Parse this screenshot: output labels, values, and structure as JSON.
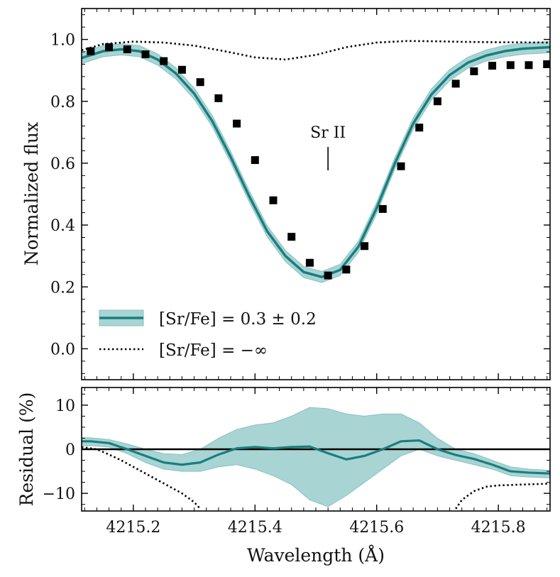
{
  "chart_data": [
    {
      "panel": "top",
      "type": "line",
      "title": "",
      "xlabel": "",
      "ylabel": "Normalized flux",
      "xlim": [
        4215.115,
        4215.885
      ],
      "ylim": [
        -0.1,
        1.1
      ],
      "yticks": [
        0.0,
        0.2,
        0.4,
        0.6,
        0.8,
        1.0
      ],
      "ytick_labels": [
        "0.0",
        "0.2",
        "0.4",
        "0.6",
        "0.8",
        "1.0"
      ],
      "annotation": {
        "text": "Sr II",
        "x": 4215.52
      },
      "series": [
        {
          "name": "[Sr/Fe] = 0.3 ± 0.2",
          "style": "solid-with-band",
          "x": [
            4215.115,
            4215.15,
            4215.18,
            4215.21,
            4215.24,
            4215.27,
            4215.3,
            4215.33,
            4215.36,
            4215.39,
            4215.42,
            4215.45,
            4215.48,
            4215.51,
            4215.54,
            4215.57,
            4215.6,
            4215.63,
            4215.66,
            4215.69,
            4215.72,
            4215.75,
            4215.78,
            4215.81,
            4215.84,
            4215.885
          ],
          "y": [
            0.94,
            0.962,
            0.968,
            0.962,
            0.935,
            0.89,
            0.825,
            0.735,
            0.62,
            0.495,
            0.38,
            0.3,
            0.248,
            0.232,
            0.255,
            0.33,
            0.455,
            0.6,
            0.728,
            0.822,
            0.885,
            0.925,
            0.948,
            0.962,
            0.97,
            0.975
          ],
          "band_halfwidth": 0.018
        },
        {
          "name": "[Sr/Fe] = −∞",
          "style": "dotted",
          "x": [
            4215.115,
            4215.15,
            4215.2,
            4215.25,
            4215.3,
            4215.35,
            4215.4,
            4215.45,
            4215.5,
            4215.55,
            4215.6,
            4215.65,
            4215.7,
            4215.75,
            4215.8,
            4215.885
          ],
          "y": [
            0.965,
            0.985,
            0.993,
            0.99,
            0.98,
            0.962,
            0.942,
            0.935,
            0.95,
            0.975,
            0.99,
            0.995,
            0.994,
            0.992,
            0.991,
            0.99
          ]
        },
        {
          "name": "data",
          "style": "markers",
          "x": [
            4215.13,
            4215.16,
            4215.19,
            4215.22,
            4215.25,
            4215.28,
            4215.31,
            4215.34,
            4215.37,
            4215.4,
            4215.43,
            4215.46,
            4215.49,
            4215.52,
            4215.55,
            4215.58,
            4215.61,
            4215.64,
            4215.67,
            4215.7,
            4215.73,
            4215.76,
            4215.79,
            4215.82,
            4215.85,
            4215.88
          ],
          "y": [
            0.962,
            0.975,
            0.968,
            0.952,
            0.93,
            0.902,
            0.862,
            0.81,
            0.728,
            0.61,
            0.48,
            0.362,
            0.278,
            0.237,
            0.256,
            0.332,
            0.452,
            0.59,
            0.715,
            0.8,
            0.857,
            0.897,
            0.915,
            0.917,
            0.917,
            0.92
          ]
        }
      ],
      "legend": {
        "position": "lower-left",
        "entries": [
          "[Sr/Fe] = 0.3 ± 0.2",
          "[Sr/Fe] = −∞"
        ]
      }
    },
    {
      "panel": "bottom",
      "type": "line",
      "xlabel": "Wavelength (Å)",
      "ylabel": "Residual (%)",
      "xlim": [
        4215.115,
        4215.885
      ],
      "ylim": [
        -14,
        14
      ],
      "xticks": [
        4215.2,
        4215.4,
        4215.6,
        4215.8
      ],
      "xtick_labels": [
        "4215.2",
        "4215.4",
        "4215.6",
        "4215.8"
      ],
      "yticks": [
        -10,
        0,
        10
      ],
      "ytick_labels": [
        "−10",
        "0",
        "10"
      ],
      "zero_line": 0,
      "series": [
        {
          "name": "residual",
          "style": "solid-with-band",
          "x": [
            4215.115,
            4215.13,
            4215.16,
            4215.19,
            4215.22,
            4215.25,
            4215.28,
            4215.31,
            4215.34,
            4215.37,
            4215.4,
            4215.43,
            4215.46,
            4215.49,
            4215.52,
            4215.55,
            4215.58,
            4215.61,
            4215.64,
            4215.67,
            4215.7,
            4215.73,
            4215.76,
            4215.79,
            4215.82,
            4215.85,
            4215.885
          ],
          "y": [
            1.8,
            1.8,
            1.4,
            0.0,
            -1.5,
            -3.0,
            -3.5,
            -3.0,
            -1.2,
            0.2,
            0.5,
            0.2,
            0.5,
            0.6,
            -0.9,
            -2.3,
            -1.5,
            0.0,
            1.8,
            2.0,
            0.0,
            -1.3,
            -2.2,
            -3.5,
            -5.0,
            -5.3,
            -5.5
          ],
          "upper": [
            2.6,
            2.6,
            2.2,
            1.2,
            0.0,
            -1.0,
            -1.2,
            0.0,
            2.5,
            4.5,
            5.5,
            6.0,
            7.5,
            9.5,
            9.2,
            8.0,
            7.5,
            8.0,
            8.0,
            6.0,
            2.5,
            0.0,
            -1.0,
            -2.5,
            -4.0,
            -4.5,
            -4.8
          ],
          "lower": [
            0.8,
            0.8,
            0.5,
            -1.0,
            -3.0,
            -4.5,
            -5.0,
            -5.0,
            -4.0,
            -3.5,
            -4.5,
            -6.0,
            -8.0,
            -11.5,
            -13.0,
            -10.5,
            -7.5,
            -4.5,
            -1.5,
            0.0,
            -1.5,
            -2.5,
            -3.5,
            -4.5,
            -6.0,
            -6.3,
            -6.5
          ]
        },
        {
          "name": "[Sr/Fe] = −∞ residual",
          "style": "dotted",
          "x": [
            4215.115,
            4215.14,
            4215.16,
            4215.18,
            4215.2,
            4215.22,
            4215.24,
            4215.26,
            4215.28,
            4215.3,
            4215.31,
            4215.73,
            4215.74,
            4215.76,
            4215.78,
            4215.8,
            4215.84,
            4215.885
          ],
          "y": [
            0.5,
            0.0,
            -1.2,
            -2.5,
            -4.0,
            -5.5,
            -7.0,
            -8.5,
            -10.0,
            -12.0,
            -13.5,
            -13.5,
            -11.5,
            -9.5,
            -8.5,
            -8.2,
            -8.0,
            -7.8
          ]
        }
      ]
    }
  ],
  "colors": {
    "model_line": "#1a7e7e",
    "band_fill": "#a9d4d4",
    "band_edge": "#88c2c2",
    "markers": "#000000",
    "axes": "#000000"
  }
}
